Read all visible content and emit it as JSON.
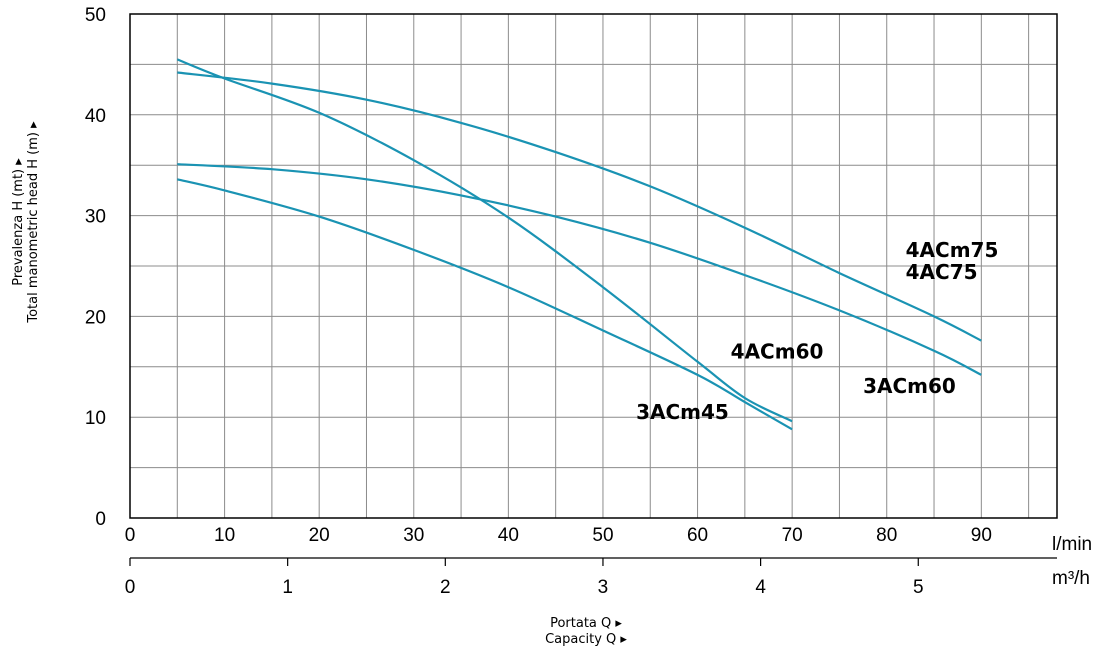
{
  "chart_data": {
    "type": "line",
    "x_axis": {
      "unit": "l/min",
      "range": [
        0,
        98
      ],
      "ticks": [
        "0",
        "10",
        "20",
        "30",
        "40",
        "50",
        "60",
        "70",
        "80",
        "90"
      ],
      "grid_step": 5
    },
    "x2_axis": {
      "unit": "m³/h",
      "range": [
        0,
        5.88
      ],
      "ticks": [
        "0",
        "1",
        "2",
        "3",
        "4",
        "5"
      ]
    },
    "y_axis": {
      "range": [
        0,
        50
      ],
      "ticks": [
        "0",
        "10",
        "20",
        "30",
        "40",
        "50"
      ],
      "grid_step": 5
    },
    "xlabel_lines": [
      "Portata Q ▸",
      "Capacity Q ▸"
    ],
    "ylabel_lines": [
      "Prevalenza H (mt) ▸",
      "Total manometric head H (m) ▸"
    ],
    "grid": true,
    "line_color": "#1a93b3",
    "series": [
      {
        "name": "4ACm75 / 4AC75",
        "x": [
          5,
          15,
          25,
          35,
          45,
          55,
          65,
          75,
          85,
          90
        ],
        "y": [
          44.2,
          43.1,
          41.5,
          39.2,
          36.3,
          32.9,
          28.8,
          24.3,
          20.0,
          17.6
        ]
      },
      {
        "name": "4ACm60",
        "x": [
          5,
          10,
          20,
          30,
          40,
          50,
          60,
          65,
          70
        ],
        "y": [
          45.5,
          43.6,
          40.2,
          35.5,
          29.8,
          22.9,
          15.5,
          11.9,
          9.6
        ]
      },
      {
        "name": "3ACm60",
        "x": [
          5,
          15,
          25,
          35,
          45,
          55,
          65,
          75,
          85,
          90
        ],
        "y": [
          35.1,
          34.6,
          33.6,
          32.0,
          29.9,
          27.3,
          24.1,
          20.6,
          16.6,
          14.2
        ]
      },
      {
        "name": "3ACm45",
        "x": [
          5,
          10,
          20,
          30,
          40,
          50,
          60,
          65,
          70
        ],
        "y": [
          33.6,
          32.5,
          29.9,
          26.6,
          22.9,
          18.6,
          14.2,
          11.5,
          8.8
        ]
      }
    ],
    "labels": [
      {
        "text": "4ACm75",
        "at": [
          82,
          25.9
        ]
      },
      {
        "text": "4AC75",
        "at": [
          82,
          23.7
        ]
      },
      {
        "text": "4ACm60",
        "at": [
          63.5,
          15.8
        ]
      },
      {
        "text": "3ACm60",
        "at": [
          77.5,
          12.4
        ]
      },
      {
        "text": "3ACm45",
        "at": [
          53.5,
          9.8
        ]
      }
    ]
  }
}
